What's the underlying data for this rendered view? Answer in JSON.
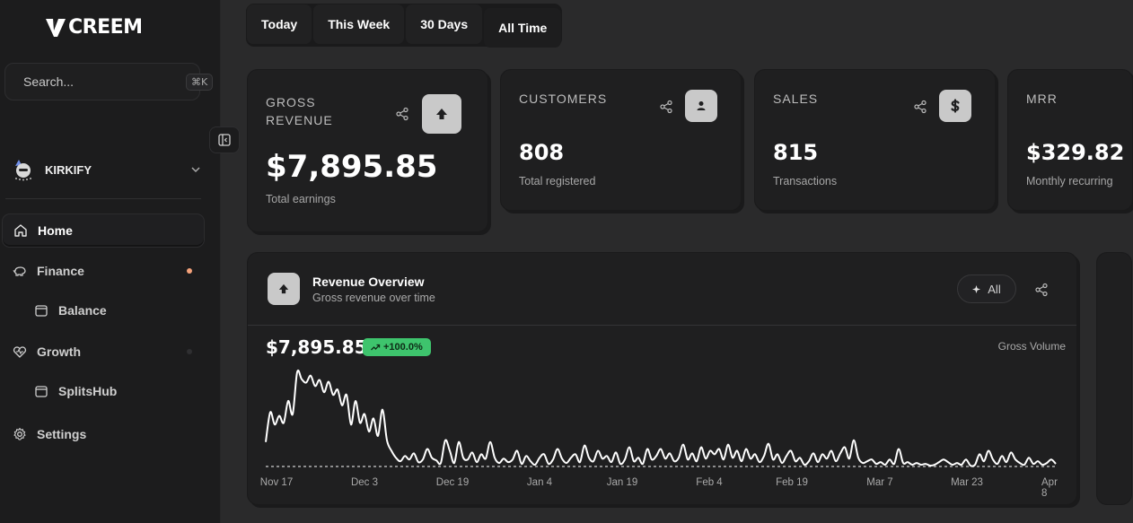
{
  "sidebar": {
    "logo_text": "CREEM",
    "search": {
      "placeholder": "Search...",
      "shortcut": "⌘K"
    },
    "workspace": {
      "name": "KIRKIFY"
    },
    "nav": [
      {
        "label": "Home",
        "icon": "home-icon"
      },
      {
        "label": "Finance",
        "icon": "piggy-bank-icon",
        "dot_color": "#f4a27b"
      },
      {
        "label": "Balance",
        "icon": "wallet-icon"
      },
      {
        "label": "Growth",
        "icon": "heart-pulse-icon",
        "dot_color": "#2f2f31"
      },
      {
        "label": "SplitsHub",
        "icon": "wallet-icon"
      },
      {
        "label": "Settings",
        "icon": "gear-icon"
      }
    ]
  },
  "tabs": [
    "Today",
    "This Week",
    "30 Days",
    "All Time"
  ],
  "selected_tab": "All Time",
  "cards": [
    {
      "label": "GROSS\nREVENUE",
      "value": "$7,895.85",
      "sub": "Total earnings",
      "icon": "arrow-up-icon"
    },
    {
      "label": "CUSTOMERS",
      "value": "808",
      "sub": "Total registered",
      "icon": "user-icon"
    },
    {
      "label": "SALES",
      "value": "815",
      "sub": "Transactions",
      "icon": "dollar-icon"
    },
    {
      "label": "MRR",
      "value": "$329.82",
      "sub": "Monthly recurring"
    }
  ],
  "revenue": {
    "title": "Revenue Overview",
    "subtitle": "Gross revenue over time",
    "filter_label": "All",
    "total": "$7,895.85",
    "change": "+100.0%",
    "series_label": "Gross Volume"
  },
  "chart_data": {
    "type": "line",
    "x_ticks": [
      "Nov 17",
      "Dec 3",
      "Dec 19",
      "Jan 4",
      "Jan 19",
      "Feb 4",
      "Feb 19",
      "Mar 7",
      "Mar 23",
      "Apr 8"
    ],
    "values": [
      28,
      62,
      48,
      58,
      50,
      75,
      60,
      108,
      100,
      96,
      104,
      92,
      99,
      85,
      97,
      82,
      88,
      70,
      82,
      48,
      75,
      50,
      60,
      40,
      55,
      35,
      65,
      30,
      18,
      10,
      6,
      12,
      8,
      15,
      5,
      8,
      20,
      10,
      7,
      4,
      30,
      18,
      4,
      28,
      10,
      8,
      16,
      5,
      14,
      9,
      28,
      10,
      4,
      9,
      5,
      8,
      18,
      3,
      12,
      6,
      2,
      10,
      14,
      3,
      8,
      20,
      9,
      4,
      10,
      14,
      5,
      24,
      10,
      6,
      18,
      9,
      12,
      5,
      16,
      3,
      8,
      22,
      6,
      10,
      3,
      20,
      8,
      12,
      20,
      9,
      15,
      6,
      10,
      25,
      8,
      15,
      6,
      22,
      9,
      18,
      14,
      20,
      8,
      25,
      10,
      18,
      6,
      20,
      9,
      14,
      5,
      12,
      26,
      8,
      14,
      4,
      12,
      18,
      6,
      10,
      2,
      6,
      15,
      5,
      14,
      9,
      18,
      6,
      15,
      22,
      9,
      30,
      10,
      4,
      6,
      8,
      3,
      5,
      2,
      8,
      3,
      20,
      4,
      5,
      2,
      4,
      2,
      3,
      1,
      2,
      5,
      8,
      5,
      2,
      4,
      2,
      8,
      1,
      2,
      14,
      6,
      18,
      8,
      3,
      12,
      5,
      16,
      8,
      4,
      2,
      10,
      3,
      6,
      2,
      4,
      8,
      3
    ],
    "baseline": 0,
    "ylim": [
      0,
      115
    ]
  }
}
